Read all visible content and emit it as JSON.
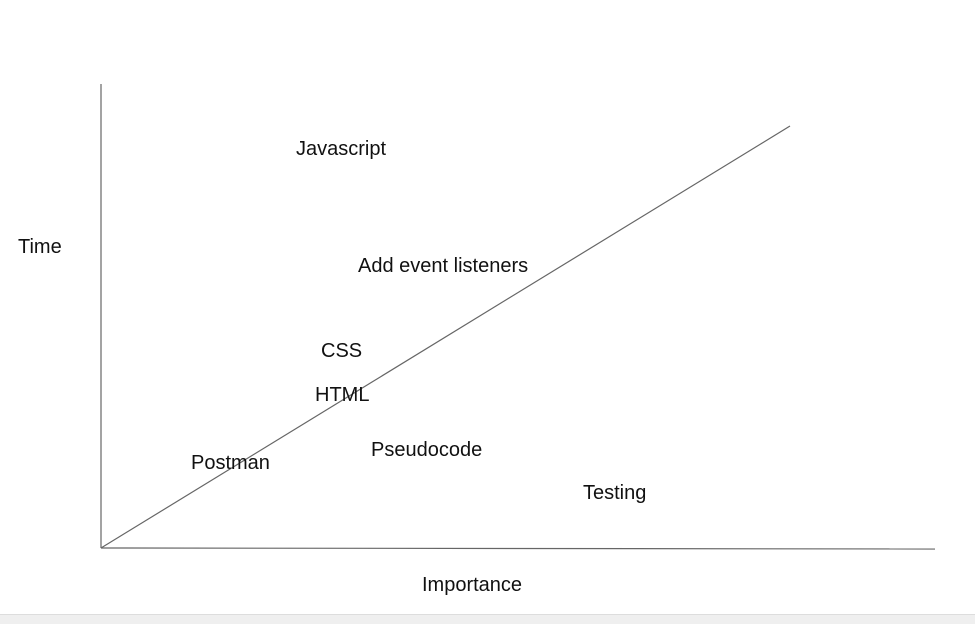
{
  "axes": {
    "y_label": "Time",
    "x_label": "Importance"
  },
  "items": [
    {
      "key": "javascript",
      "label": "Javascript"
    },
    {
      "key": "add_event_listeners",
      "label": "Add event listeners"
    },
    {
      "key": "css",
      "label": "CSS"
    },
    {
      "key": "html",
      "label": "HTML"
    },
    {
      "key": "pseudocode",
      "label": "Pseudocode"
    },
    {
      "key": "postman",
      "label": "Postman"
    },
    {
      "key": "testing",
      "label": "Testing"
    }
  ],
  "colors": {
    "line": "#666666",
    "text": "#111111",
    "background": "#ffffff"
  }
}
